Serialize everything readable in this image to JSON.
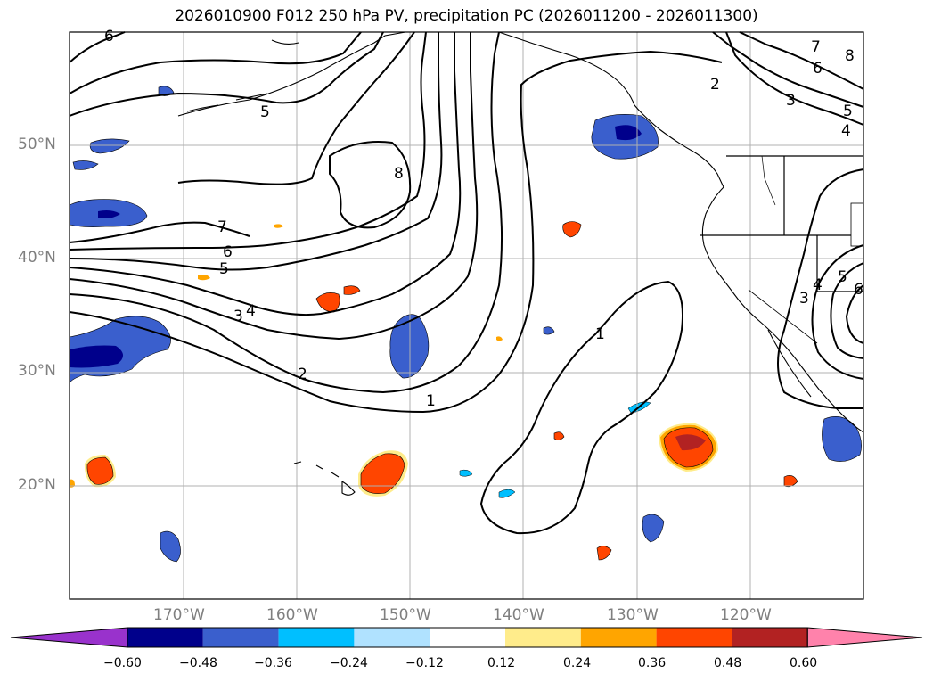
{
  "title": "2026010900 F012 250 hPa PV, precipitation PC (2026011200 - 2026011300)",
  "lat_labels": [
    "50°N",
    "40°N",
    "30°N",
    "20°N"
  ],
  "lon_labels": [
    "170°W",
    "160°W",
    "150°W",
    "140°W",
    "130°W",
    "120°W"
  ],
  "contour_labels": [
    "6",
    "5",
    "8",
    "7",
    "6",
    "5",
    "4",
    "3",
    "2",
    "1",
    "1",
    "2",
    "3",
    "4",
    "5",
    "6",
    "7",
    "8",
    "3",
    "4",
    "5",
    "6"
  ],
  "colorbar": {
    "ticks": [
      "−0.60",
      "−0.48",
      "−0.36",
      "−0.24",
      "−0.12",
      "0.12",
      "0.24",
      "0.36",
      "0.48",
      "0.60"
    ],
    "colors": [
      "#9932cc",
      "#00008b",
      "#3a5fcd",
      "#00bfff",
      "#b0e2ff",
      "#ffffff",
      "#ffec8b",
      "#ffa500",
      "#ff4500",
      "#b22222",
      "#ff82ab"
    ]
  },
  "colors": {
    "gridline": "#b0b0b0",
    "axis_label": "#7f7f7f",
    "contour": "#000000",
    "neg_dark": "#00008b",
    "neg_mid": "#3a5fcd",
    "neg_light": "#00bfff",
    "pos_light": "#ffec8b",
    "pos_mid": "#ffa500",
    "pos_strong": "#ff4500",
    "pos_dark": "#b22222"
  }
}
